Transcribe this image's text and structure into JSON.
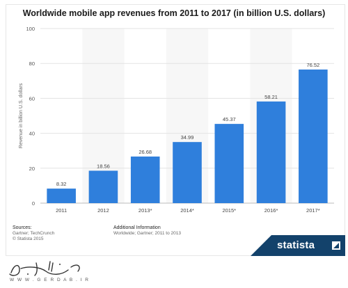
{
  "chart_data": {
    "type": "bar",
    "title": "Worldwide mobile app revenues from 2011 to 2017 (in billion U.S. dollars)",
    "ylabel": "Revenue in billion U.S. dollars",
    "xlabel": "",
    "categories": [
      "2011",
      "2012",
      "2013*",
      "2014*",
      "2015*",
      "2016*",
      "2017*"
    ],
    "values": [
      8.32,
      18.56,
      26.68,
      34.99,
      45.37,
      58.21,
      76.52
    ],
    "value_labels": [
      "8.32",
      "18.56",
      "26.68",
      "34.99",
      "45.37",
      "58.21",
      "76.52"
    ],
    "ylim": [
      0,
      100
    ],
    "yticks": [
      0,
      20,
      40,
      60,
      80,
      100
    ],
    "bar_color": "#2f7fdc",
    "grid": true,
    "legend": "none"
  },
  "footer": {
    "sources_heading": "Sources:",
    "sources_line1": "Gartner; TechCrunch",
    "sources_line2": "© Statista 2015",
    "info_heading": "Additional Information",
    "info_line1": "Worldwide; Gartner; 2011 to 2013"
  },
  "logo": {
    "text": "statista",
    "icon": "statista-logo-icon",
    "color": "#13426b"
  },
  "watermark": {
    "text": "W W W . G E R D A B . I R",
    "icon": "calligraphy-logo-icon"
  }
}
